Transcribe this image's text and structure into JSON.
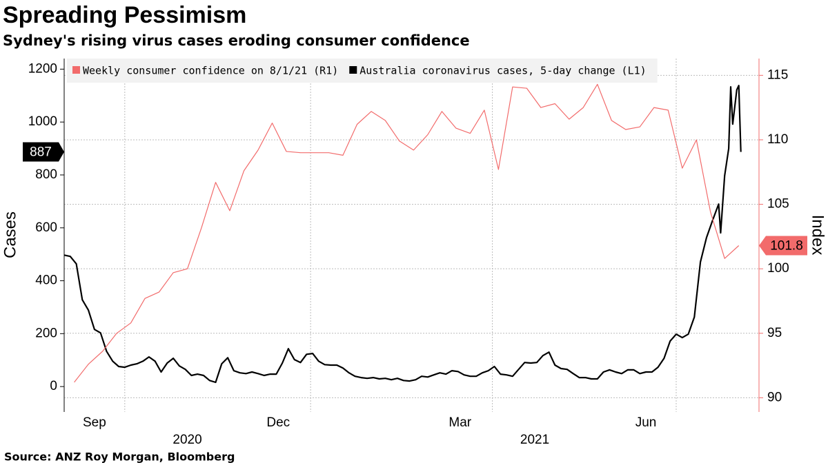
{
  "chart_data": {
    "type": "line",
    "title": "Spreading Pessimism",
    "subtitle": "Sydney's rising virus cases eroding consumer confidence",
    "source": "Source: ANZ Roy Morgan, Bloomberg",
    "ylabel": "Cases",
    "y2label": "Index",
    "xlim": [
      "2020-09-01",
      "2021-08-11"
    ],
    "xticks": [
      {
        "value": "2020-09-16",
        "label": "Sep"
      },
      {
        "value": "2020-12-16",
        "label": "Dec"
      },
      {
        "value": "2021-03-16",
        "label": "Mar"
      },
      {
        "value": "2021-06-16",
        "label": "Jun"
      }
    ],
    "years": [
      "2020",
      "2021"
    ],
    "xgrid": [
      "2020-10-01",
      "2021-01-01",
      "2021-04-01",
      "2021-07-01"
    ],
    "ylim": [
      -96,
      1240
    ],
    "yticks": [
      0,
      200,
      400,
      600,
      800,
      1000,
      1200
    ],
    "y2lim": [
      88.9,
      116.3
    ],
    "y2ticks": [
      90,
      95,
      100,
      105,
      110,
      115
    ],
    "grid": true,
    "legend": "top-left",
    "series": [
      {
        "name": "Weekly consumer confidence on 8/1/21 (R1)",
        "color": "#f26b6b",
        "axis": "y2",
        "x": [
          "2020-09-06",
          "2020-09-13",
          "2020-09-20",
          "2020-09-27",
          "2020-10-04",
          "2020-10-11",
          "2020-10-18",
          "2020-10-25",
          "2020-11-01",
          "2020-11-08",
          "2020-11-15",
          "2020-11-22",
          "2020-11-29",
          "2020-12-06",
          "2020-12-13",
          "2020-12-20",
          "2020-12-27",
          "2021-01-03",
          "2021-01-10",
          "2021-01-17",
          "2021-01-24",
          "2021-01-31",
          "2021-02-07",
          "2021-02-14",
          "2021-02-21",
          "2021-02-28",
          "2021-03-07",
          "2021-03-14",
          "2021-03-21",
          "2021-03-28",
          "2021-04-04",
          "2021-04-11",
          "2021-04-18",
          "2021-04-25",
          "2021-05-02",
          "2021-05-09",
          "2021-05-16",
          "2021-05-23",
          "2021-05-30",
          "2021-06-06",
          "2021-06-13",
          "2021-06-20",
          "2021-06-27",
          "2021-07-04",
          "2021-07-11",
          "2021-07-18",
          "2021-07-25",
          "2021-08-01"
        ],
        "values": [
          91.2,
          92.6,
          93.6,
          95.0,
          95.8,
          97.7,
          98.2,
          99.7,
          100.0,
          103.2,
          106.7,
          104.5,
          107.6,
          109.2,
          111.3,
          109.1,
          109.0,
          109.0,
          109.0,
          108.8,
          111.2,
          112.2,
          111.5,
          109.9,
          109.2,
          110.4,
          112.2,
          110.9,
          110.5,
          112.3,
          107.7,
          114.1,
          114.0,
          112.5,
          112.8,
          111.6,
          112.5,
          114.3,
          111.5,
          110.8,
          111.0,
          112.5,
          112.3,
          107.8,
          110.0,
          104.4,
          100.8,
          101.8
        ]
      },
      {
        "name": "Australia coronavirus cases, 5-day change (L1)",
        "color": "#000000",
        "axis": "y",
        "x": [
          "2020-09-01",
          "2020-09-04",
          "2020-09-07",
          "2020-09-10",
          "2020-09-13",
          "2020-09-16",
          "2020-09-19",
          "2020-09-22",
          "2020-09-25",
          "2020-09-28",
          "2020-10-01",
          "2020-10-04",
          "2020-10-07",
          "2020-10-10",
          "2020-10-13",
          "2020-10-16",
          "2020-10-19",
          "2020-10-22",
          "2020-10-25",
          "2020-10-28",
          "2020-10-31",
          "2020-11-03",
          "2020-11-06",
          "2020-11-09",
          "2020-11-12",
          "2020-11-15",
          "2020-11-18",
          "2020-11-21",
          "2020-11-24",
          "2020-11-27",
          "2020-11-30",
          "2020-12-03",
          "2020-12-06",
          "2020-12-09",
          "2020-12-12",
          "2020-12-15",
          "2020-12-18",
          "2020-12-21",
          "2020-12-24",
          "2020-12-27",
          "2020-12-30",
          "2021-01-02",
          "2021-01-05",
          "2021-01-08",
          "2021-01-11",
          "2021-01-14",
          "2021-01-17",
          "2021-01-20",
          "2021-01-23",
          "2021-01-26",
          "2021-01-29",
          "2021-02-01",
          "2021-02-04",
          "2021-02-07",
          "2021-02-10",
          "2021-02-13",
          "2021-02-16",
          "2021-02-19",
          "2021-02-22",
          "2021-02-25",
          "2021-02-28",
          "2021-03-03",
          "2021-03-06",
          "2021-03-09",
          "2021-03-12",
          "2021-03-15",
          "2021-03-18",
          "2021-03-21",
          "2021-03-24",
          "2021-03-27",
          "2021-03-30",
          "2021-04-02",
          "2021-04-05",
          "2021-04-08",
          "2021-04-11",
          "2021-04-14",
          "2021-04-17",
          "2021-04-20",
          "2021-04-23",
          "2021-04-26",
          "2021-04-29",
          "2021-05-02",
          "2021-05-05",
          "2021-05-08",
          "2021-05-11",
          "2021-05-14",
          "2021-05-17",
          "2021-05-20",
          "2021-05-23",
          "2021-05-26",
          "2021-05-29",
          "2021-06-01",
          "2021-06-04",
          "2021-06-07",
          "2021-06-10",
          "2021-06-13",
          "2021-06-16",
          "2021-06-19",
          "2021-06-22",
          "2021-06-25",
          "2021-06-28",
          "2021-07-01",
          "2021-07-04",
          "2021-07-07",
          "2021-07-10",
          "2021-07-13",
          "2021-07-16",
          "2021-07-19",
          "2021-07-22",
          "2021-07-23",
          "2021-07-25",
          "2021-07-27",
          "2021-07-28",
          "2021-07-29",
          "2021-07-31",
          "2021-08-01",
          "2021-08-02"
        ],
        "values": [
          497,
          492,
          464,
          328,
          289,
          216,
          203,
          133,
          96,
          76,
          73,
          81,
          86,
          96,
          112,
          96,
          55,
          89,
          107,
          78,
          65,
          42,
          47,
          42,
          23,
          16,
          86,
          109,
          60,
          52,
          49,
          55,
          49,
          42,
          47,
          47,
          89,
          143,
          102,
          91,
          122,
          125,
          96,
          83,
          81,
          81,
          70,
          52,
          39,
          34,
          31,
          34,
          29,
          31,
          26,
          31,
          23,
          21,
          26,
          39,
          36,
          44,
          52,
          47,
          60,
          57,
          44,
          39,
          39,
          52,
          60,
          76,
          47,
          44,
          39,
          65,
          91,
          89,
          91,
          117,
          130,
          81,
          68,
          65,
          49,
          34,
          34,
          29,
          29,
          55,
          63,
          55,
          49,
          63,
          63,
          49,
          55,
          55,
          73,
          107,
          172,
          198,
          185,
          198,
          263,
          471,
          563,
          628,
          690,
          581,
          797,
          900,
          1133,
          992,
          1122,
          1138,
          887
        ]
      }
    ]
  }
}
